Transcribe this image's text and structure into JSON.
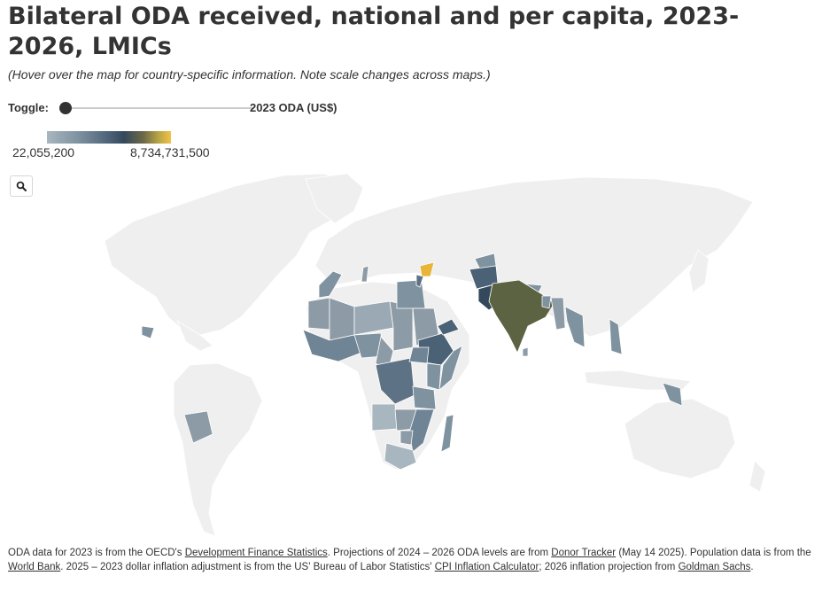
{
  "title": "Bilateral ODA received, national and per capita, 2023-2026, LMICs",
  "subtitle": "(Hover over the map for country-specific information. Note scale changes across maps.)",
  "toggle": {
    "label": "Toggle:",
    "value": "2023 ODA (US$)",
    "position": 0
  },
  "legend": {
    "min": "22,055,200",
    "max": "8,734,731,500",
    "colors": [
      "#a8b6bf",
      "#7f92a0",
      "#4c6378",
      "#34495c",
      "#6e6a48",
      "#f2c14a"
    ]
  },
  "search_icon": "search-icon",
  "map_colors": {
    "background_land": "#efefef",
    "low": "#8d9ba6",
    "mid": "#6f8494",
    "dark": "#4a6176",
    "india": "#5c6342",
    "syria": "#e8b53a"
  },
  "footer": {
    "p1": "ODA data for 2023 is from the OECD's ",
    "link1": "Development Finance Statistics",
    "p2": ". Projections of 2024 – 2026 ODA levels are from ",
    "link2": "Donor Tracker",
    "p3": " (May 14 2025). Population data is from the ",
    "link3": "World Bank",
    "p4": ". 2025 – 2023 dollar inflation adjustment is from the US' Bureau of Labor Statistics' ",
    "link4": "CPI Inflation Calculator",
    "p5": "; 2026 inflation projection from ",
    "link5": "Goldman Sachs",
    "p6": "."
  }
}
